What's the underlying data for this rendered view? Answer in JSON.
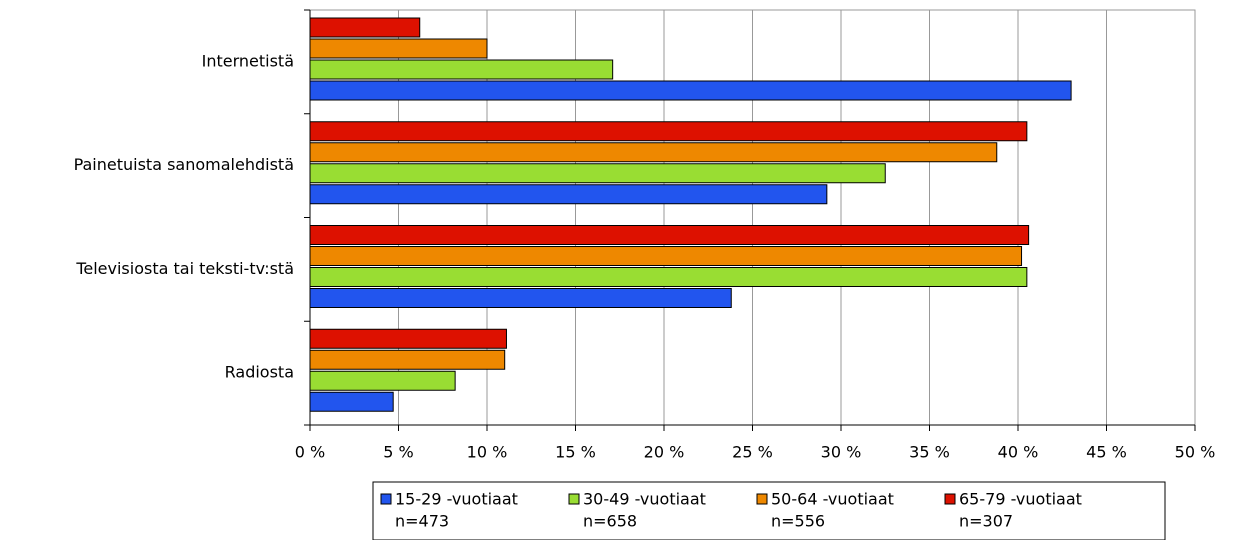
{
  "chart_data": {
    "type": "bar",
    "orientation": "horizontal",
    "categories": [
      "Internetistä",
      "Painetuista sanomalehdistä",
      "Televisiosta tai teksti-tv:stä",
      "Radiosta"
    ],
    "series": [
      {
        "name": "15-29 -vuotiaat",
        "sample": "n=473",
        "color": "#2255ee",
        "values": [
          43.0,
          29.2,
          23.8,
          4.7
        ]
      },
      {
        "name": "30-49 -vuotiaat",
        "sample": "n=658",
        "color": "#99dd33",
        "values": [
          17.1,
          32.5,
          40.5,
          8.2
        ]
      },
      {
        "name": "50-64 -vuotiaat",
        "sample": "n=556",
        "color": "#ee8800",
        "values": [
          10.0,
          38.8,
          40.2,
          11.0
        ]
      },
      {
        "name": "65-79 -vuotiaat",
        "sample": "n=307",
        "color": "#dd1100",
        "values": [
          6.2,
          40.5,
          40.6,
          11.1
        ]
      }
    ],
    "xlim": [
      0,
      50
    ],
    "xticks": [
      {
        "value": 0,
        "label": "0 %"
      },
      {
        "value": 5,
        "label": "5 %"
      },
      {
        "value": 10,
        "label": "10 %"
      },
      {
        "value": 15,
        "label": "15 %"
      },
      {
        "value": 20,
        "label": "20 %"
      },
      {
        "value": 25,
        "label": "25 %"
      },
      {
        "value": 30,
        "label": "30 %"
      },
      {
        "value": 35,
        "label": "35 %"
      },
      {
        "value": 40,
        "label": "40 %"
      },
      {
        "value": 45,
        "label": "45 %"
      },
      {
        "value": 50,
        "label": "50 %"
      }
    ],
    "grid": true,
    "legend": "bottom"
  }
}
